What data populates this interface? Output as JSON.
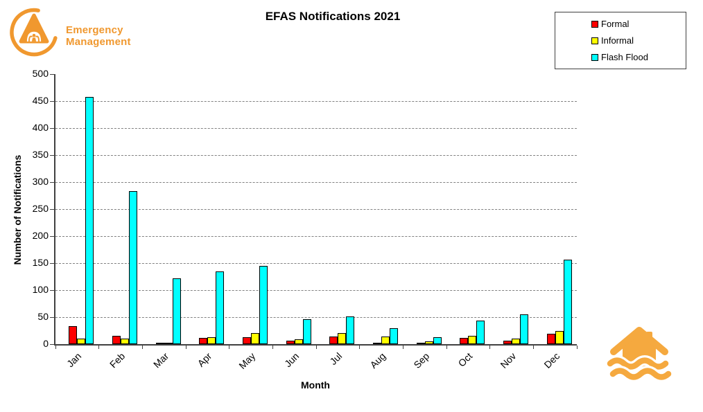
{
  "header": {
    "logo_text_line1": "Emergency",
    "logo_text_line2": "Management",
    "title": "EFAS Notifications 2021"
  },
  "legend": {
    "entries": [
      {
        "label": "Formal",
        "color": "#FF0000"
      },
      {
        "label": "Informal",
        "color": "#FFFF00"
      },
      {
        "label": "Flash Flood",
        "color": "#00FFFF"
      }
    ]
  },
  "chart_data": {
    "type": "bar",
    "title": "EFAS Notifications 2021",
    "xlabel": "Month",
    "ylabel": "Number of Notifications",
    "ylim": [
      0,
      500
    ],
    "yticks": [
      0,
      50,
      100,
      150,
      200,
      250,
      300,
      350,
      400,
      450,
      500
    ],
    "grid": "horizontal-dashed",
    "legend_position": "top-right",
    "categories": [
      "Jan",
      "Feb",
      "Mar",
      "Apr",
      "May",
      "Jun",
      "Jul",
      "Aug",
      "Sep",
      "Oct",
      "Nov",
      "Dec"
    ],
    "series": [
      {
        "name": "Formal",
        "color": "#FF0000",
        "values": [
          33,
          16,
          3,
          11,
          13,
          6,
          14,
          2,
          1,
          11,
          7,
          19
        ]
      },
      {
        "name": "Informal",
        "color": "#FFFF00",
        "values": [
          10,
          10,
          2,
          13,
          20,
          9,
          21,
          14,
          5,
          15,
          10,
          24
        ]
      },
      {
        "name": "Flash Flood",
        "color": "#00FFFF",
        "values": [
          458,
          283,
          122,
          135,
          145,
          46,
          51,
          29,
          13,
          44,
          55,
          157
        ]
      }
    ]
  },
  "colors": {
    "logo_orange": "#F0982F",
    "flood_orange": "#F5A93F",
    "grid_gray": "#808080",
    "axis_dark": "#404040"
  }
}
